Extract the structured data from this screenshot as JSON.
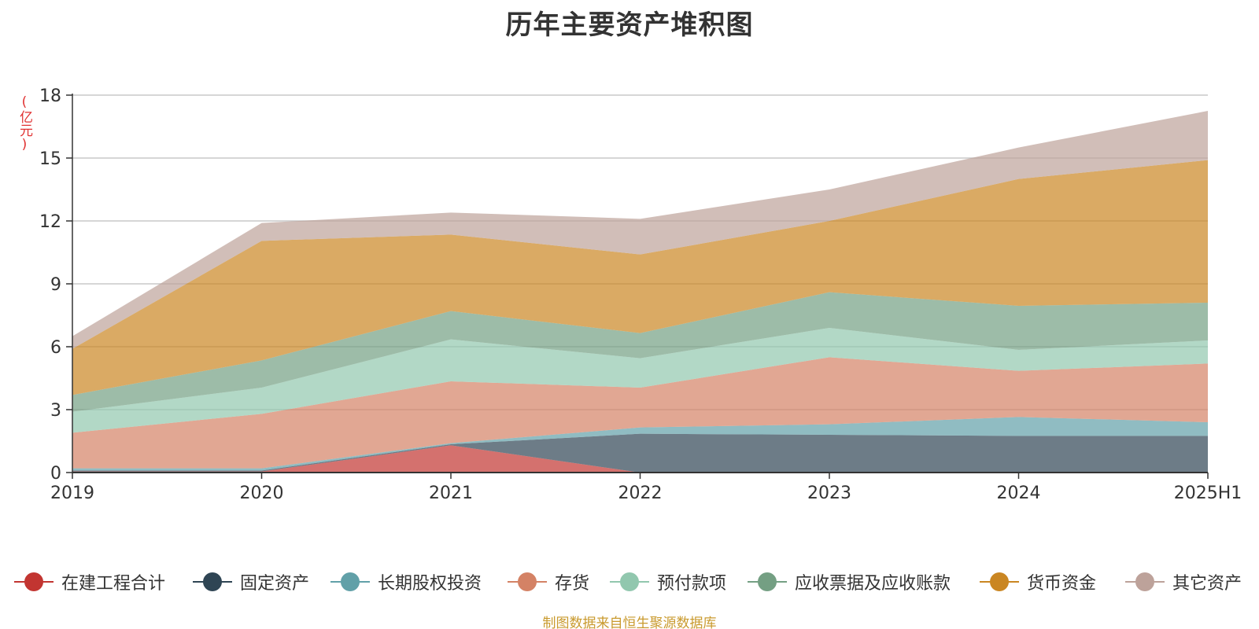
{
  "title": "历年主要资产堆积图",
  "unit": "(亿元)",
  "source": "制图数据来自恒生聚源数据库",
  "chart_data": {
    "type": "area",
    "stacked": true,
    "categories": [
      "2019",
      "2020",
      "2021",
      "2022",
      "2023",
      "2024",
      "2025H1"
    ],
    "y_ticks": [
      "0",
      "3",
      "6",
      "9",
      "12",
      "15",
      "18"
    ],
    "ylim": [
      0,
      18
    ],
    "grid": true,
    "legend_position": "bottom",
    "series": [
      {
        "name": "在建工程合计",
        "color": "#c23531",
        "values": [
          0.05,
          0.05,
          1.3,
          0.0,
          0.0,
          0.0,
          0.0
        ]
      },
      {
        "name": "固定资产",
        "color": "#2f4554",
        "values": [
          0.05,
          0.05,
          0.05,
          1.85,
          1.8,
          1.75,
          1.75
        ]
      },
      {
        "name": "长期股权投资",
        "color": "#61a0a8",
        "values": [
          0.1,
          0.1,
          0.05,
          0.3,
          0.5,
          0.9,
          0.65
        ]
      },
      {
        "name": "存货",
        "color": "#d48265",
        "values": [
          1.7,
          2.6,
          2.95,
          1.9,
          3.2,
          2.2,
          2.8
        ]
      },
      {
        "name": "预付款项",
        "color": "#91c7ae",
        "values": [
          1.0,
          1.25,
          2.0,
          1.4,
          1.4,
          1.0,
          1.1
        ]
      },
      {
        "name": "应收票据及应收账款",
        "color": "#749f83",
        "values": [
          0.8,
          1.3,
          1.35,
          1.2,
          1.7,
          2.1,
          1.8
        ]
      },
      {
        "name": "货币资金",
        "color": "#ca8622",
        "values": [
          2.2,
          5.7,
          3.65,
          3.75,
          3.4,
          6.05,
          6.8
        ]
      },
      {
        "name": "其它资产",
        "color": "#bda29a",
        "values": [
          0.6,
          0.85,
          1.05,
          1.7,
          1.5,
          1.5,
          2.35
        ]
      }
    ]
  }
}
